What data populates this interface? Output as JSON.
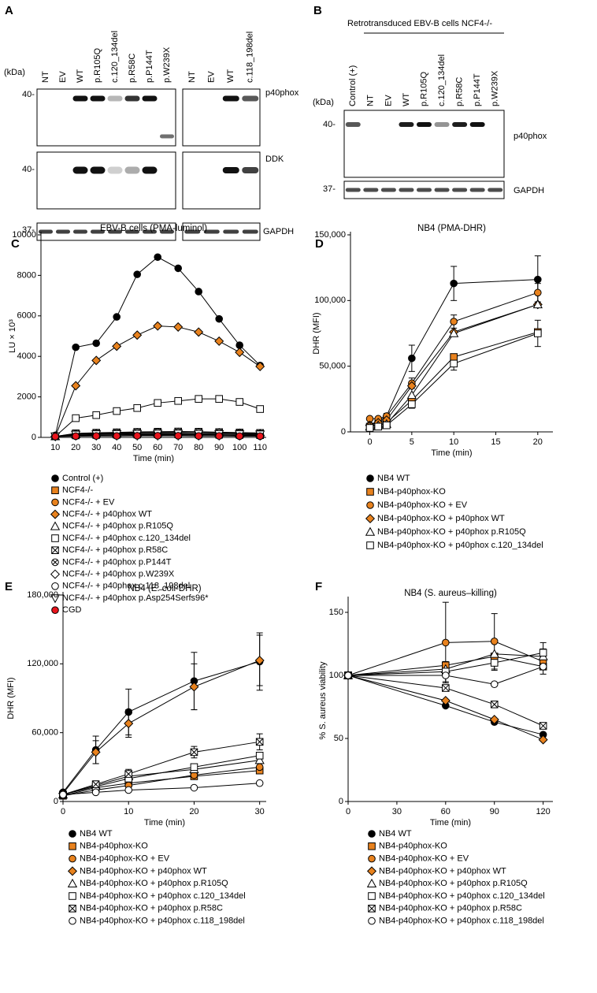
{
  "blots": {
    "A": {
      "letter": "A",
      "kda": "(kDa)",
      "lanes_left": [
        "NT",
        "EV",
        "WT",
        "p.R105Q",
        "c.120_134del",
        "p.R58C",
        "p.P144T",
        "p.W239X"
      ],
      "lanes_right": [
        "NT",
        "EV",
        "WT",
        "c.118_198del"
      ],
      "markers": [
        "40-",
        "40-",
        "37-"
      ],
      "proteins": [
        "p40phox",
        "DDK",
        "GAPDH"
      ]
    },
    "B": {
      "letter": "B",
      "header": "Retrotransduced EBV-B cells NCF4-/-",
      "kda": "(kDa)",
      "lanes": [
        "Control (+)",
        "NT",
        "EV",
        "WT",
        "p.R105Q",
        "c.120_134del",
        "p.R58C",
        "p.P144T",
        "p.W239X"
      ],
      "markers": [
        "40-",
        "37-"
      ],
      "proteins": [
        "p40phox",
        "GAPDH"
      ]
    }
  },
  "chart_data": [
    {
      "type": "line",
      "letter": "C",
      "title": "EBV-B cells (PMA-luminol)",
      "xlabel": "Time (min)",
      "ylabel": "LU × 10³",
      "x": [
        10,
        20,
        30,
        40,
        50,
        60,
        70,
        80,
        90,
        100,
        110
      ],
      "xlim": [
        3,
        113
      ],
      "xticks": [
        10,
        20,
        30,
        40,
        50,
        60,
        70,
        80,
        90,
        100,
        110
      ],
      "ylim": [
        0,
        10000
      ],
      "yticks": [
        0,
        2000,
        4000,
        6000,
        8000,
        10000
      ],
      "series": [
        {
          "name": "Control (+)",
          "color": "#000000",
          "marker": "circle",
          "values": [
            100,
            4450,
            4650,
            5950,
            8050,
            8900,
            8350,
            7200,
            5850,
            4550,
            3550
          ]
        },
        {
          "name": "NCF4-/-",
          "color": "#e8821e",
          "marker": "square",
          "values": [
            50,
            100,
            120,
            130,
            140,
            150,
            150,
            140,
            130,
            120,
            110
          ]
        },
        {
          "name": "NCF4-/- + EV",
          "color": "#e8821e",
          "marker": "circle",
          "values": [
            50,
            90,
            100,
            110,
            120,
            120,
            130,
            120,
            110,
            100,
            100
          ]
        },
        {
          "name": "NCF4-/- + p40phox WT",
          "color": "#e8821e",
          "marker": "diamond",
          "values": [
            50,
            2550,
            3800,
            4500,
            5050,
            5500,
            5450,
            5200,
            4750,
            4200,
            3500
          ]
        },
        {
          "name": "NCF4-/- + p40phox p.R105Q",
          "color": "#ffffff",
          "marker": "triangle",
          "values": [
            50,
            150,
            180,
            200,
            220,
            230,
            240,
            230,
            220,
            200,
            180
          ]
        },
        {
          "name": "NCF4-/- + p40phox c.120_134del",
          "color": "#ffffff",
          "marker": "square",
          "values": [
            50,
            950,
            1100,
            1300,
            1450,
            1700,
            1800,
            1900,
            1900,
            1750,
            1400
          ]
        },
        {
          "name": "NCF4-/- + p40phox p.R58C",
          "color": "#ffffff",
          "marker": "xsquare",
          "values": [
            50,
            200,
            230,
            250,
            270,
            280,
            290,
            280,
            260,
            240,
            220
          ]
        },
        {
          "name": "NCF4-/- + p40phox p.P144T",
          "color": "#ffffff",
          "marker": "xcircle",
          "values": [
            50,
            180,
            200,
            220,
            240,
            250,
            250,
            240,
            230,
            210,
            190
          ]
        },
        {
          "name": "NCF4-/- + p40phox p.W239X",
          "color": "#ffffff",
          "marker": "diamond",
          "values": [
            50,
            100,
            110,
            120,
            130,
            130,
            130,
            120,
            120,
            110,
            100
          ]
        },
        {
          "name": "NCF4-/- + p40phox c.118_198del",
          "color": "#ffffff",
          "marker": "circle",
          "values": [
            50,
            90,
            100,
            110,
            110,
            120,
            120,
            110,
            110,
            100,
            100
          ]
        },
        {
          "name": "NCF4-/- + p40phox p.Asp254Serfs96*",
          "color": "#ffffff",
          "marker": "itriangle",
          "values": [
            50,
            140,
            160,
            170,
            180,
            190,
            190,
            180,
            170,
            160,
            150
          ]
        },
        {
          "name": "CGD",
          "color": "#e8141c",
          "marker": "circle",
          "values": [
            40,
            60,
            70,
            70,
            80,
            80,
            80,
            70,
            70,
            60,
            60
          ]
        }
      ]
    },
    {
      "type": "line",
      "letter": "D",
      "title": "NB4 (PMA-DHR)",
      "xlabel": "Time (min)",
      "ylabel": "DHR (MFI)",
      "x": [
        0,
        1,
        2,
        5,
        10,
        20
      ],
      "xlim": [
        -2.3,
        21.8
      ],
      "xticks": [
        0,
        5,
        10,
        15,
        20
      ],
      "ylim": [
        0,
        150000
      ],
      "yticks": [
        0,
        {
          "value": 50000,
          "label": "50,000"
        },
        {
          "value": 100000,
          "label": "100,000"
        },
        {
          "value": 150000,
          "label": "150,000"
        }
      ],
      "series": [
        {
          "name": "NB4 WT",
          "color": "#000000",
          "marker": "circle",
          "values": [
            5000,
            8000,
            12000,
            56000,
            113000,
            116000
          ],
          "errors": [
            0,
            0,
            2000,
            10000,
            13000,
            18000
          ]
        },
        {
          "name": "NB4-p40phox-KO",
          "color": "#e8821e",
          "marker": "square",
          "values": [
            4000,
            5000,
            7000,
            24000,
            57000,
            76000
          ]
        },
        {
          "name": "NB4-p40phox-KO + EV",
          "color": "#e8821e",
          "marker": "circle",
          "values": [
            10000,
            10000,
            12000,
            37000,
            84000,
            106000
          ],
          "errors": [
            0,
            0,
            0,
            4000,
            5000,
            7000
          ]
        },
        {
          "name": "NB4-p40phox-KO + p40phox WT",
          "color": "#e8821e",
          "marker": "diamond",
          "values": [
            5000,
            7000,
            9000,
            35000,
            76000,
            97000
          ]
        },
        {
          "name": "NB4-p40phox-KO + p40phox p.R105Q",
          "color": "#ffffff",
          "marker": "triangle",
          "values": [
            4000,
            5000,
            6000,
            28000,
            75000,
            97000
          ]
        },
        {
          "name": "NB4-p40phox-KO + p40phox c.120_134del",
          "color": "#ffffff",
          "marker": "square",
          "values": [
            3000,
            4000,
            5000,
            21000,
            52000,
            75000
          ],
          "errors": [
            0,
            0,
            0,
            3000,
            5000,
            10000
          ]
        }
      ]
    },
    {
      "type": "line",
      "letter": "E",
      "title": "NB4 (E. coli-DHR)",
      "xlabel": "Time (min)",
      "ylabel": "DHR (MFI)",
      "x": [
        0,
        5,
        10,
        20,
        30
      ],
      "xlim": [
        0,
        31
      ],
      "xticks": [
        0,
        10,
        20,
        30
      ],
      "ylim": [
        0,
        180000
      ],
      "yticks": [
        0,
        {
          "value": 60000,
          "label": "60,000"
        },
        {
          "value": 120000,
          "label": "120,000"
        },
        {
          "value": 180000,
          "label": "180,000"
        }
      ],
      "series": [
        {
          "name": "NB4 WT",
          "color": "#000000",
          "marker": "circle",
          "values": [
            8000,
            45000,
            78000,
            105000,
            122000
          ],
          "errors": [
            0,
            12000,
            20000,
            25000,
            25000
          ]
        },
        {
          "name": "NB4-p40phox-KO",
          "color": "#e8821e",
          "marker": "square",
          "values": [
            5000,
            12000,
            16000,
            22000,
            27000
          ]
        },
        {
          "name": "NB4-p40phox-KO + EV",
          "color": "#e8821e",
          "marker": "circle",
          "values": [
            5000,
            10000,
            14000,
            23000,
            30000
          ]
        },
        {
          "name": "NB4-p40phox-KO + p40phox WT",
          "color": "#e8821e",
          "marker": "diamond",
          "values": [
            7000,
            43000,
            68000,
            100000,
            123000
          ],
          "errors": [
            0,
            10000,
            12000,
            20000,
            22000
          ]
        },
        {
          "name": "NB4-p40phox-KO + p40phox p.R105Q",
          "color": "#ffffff",
          "marker": "triangle",
          "values": [
            6000,
            14000,
            22000,
            28000,
            36000
          ]
        },
        {
          "name": "NB4-p40phox-KO + p40phox c.120_134del",
          "color": "#ffffff",
          "marker": "square",
          "values": [
            6000,
            13000,
            20000,
            30000,
            40000
          ]
        },
        {
          "name": "NB4-p40phox-KO + p40phox p.R58C",
          "color": "#ffffff",
          "marker": "xsquare",
          "values": [
            6000,
            15000,
            24000,
            43000,
            52000
          ],
          "errors": [
            0,
            3000,
            4000,
            5000,
            7000
          ]
        },
        {
          "name": "NB4-p40phox-KO + p40phox c.118_198del",
          "color": "#ffffff",
          "marker": "circle",
          "values": [
            6000,
            8000,
            10000,
            12000,
            16000
          ]
        }
      ]
    },
    {
      "type": "line",
      "letter": "F",
      "title": "NB4 (S. aureus–killing)",
      "xlabel": "Time (min)",
      "ylabel": "% S. aureus viability",
      "x": [
        0,
        60,
        90,
        120
      ],
      "xlim": [
        0,
        126
      ],
      "xticks": [
        0,
        30,
        60,
        90,
        120
      ],
      "ylim": [
        0,
        160
      ],
      "yticks": [
        0,
        50,
        100,
        150
      ],
      "series": [
        {
          "name": "NB4 WT",
          "color": "#000000",
          "marker": "circle",
          "values": [
            100,
            76,
            63,
            53
          ]
        },
        {
          "name": "NB4-p40phox-KO",
          "color": "#e8821e",
          "marker": "square",
          "values": [
            100,
            108,
            115,
            107
          ]
        },
        {
          "name": "NB4-p40phox-KO + EV",
          "color": "#e8821e",
          "marker": "circle",
          "values": [
            100,
            126,
            127,
            111
          ],
          "errors": [
            0,
            32,
            22,
            10
          ]
        },
        {
          "name": "NB4-p40phox-KO + p40phox WT",
          "color": "#e8821e",
          "marker": "diamond",
          "values": [
            100,
            80,
            65,
            49
          ]
        },
        {
          "name": "NB4-p40phox-KO + p40phox p.R105Q",
          "color": "#ffffff",
          "marker": "triangle",
          "values": [
            100,
            105,
            117,
            115
          ]
        },
        {
          "name": "NB4-p40phox-KO + p40phox c.120_134del",
          "color": "#ffffff",
          "marker": "square",
          "values": [
            100,
            103,
            110,
            118
          ],
          "errors": [
            0,
            8,
            6,
            8
          ]
        },
        {
          "name": "NB4-p40phox-KO + p40phox p.R58C",
          "color": "#ffffff",
          "marker": "xsquare",
          "values": [
            100,
            90,
            77,
            60
          ]
        },
        {
          "name": "NB4-p40phox-KO + p40phox c.118_198del",
          "color": "#ffffff",
          "marker": "circle",
          "values": [
            100,
            100,
            93,
            107
          ]
        }
      ]
    }
  ]
}
